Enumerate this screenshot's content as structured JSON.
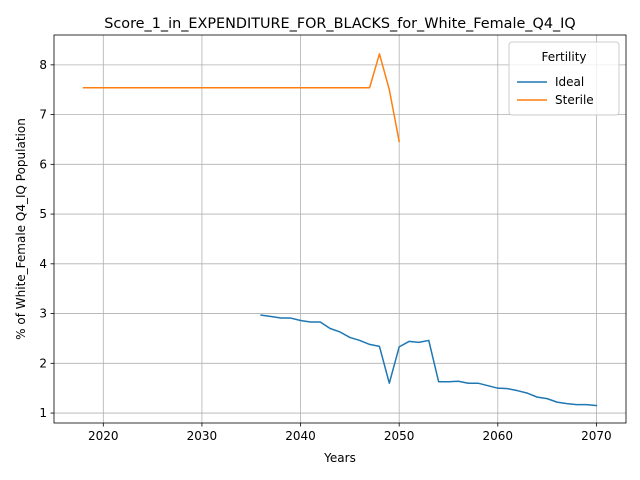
{
  "chart_data": {
    "type": "line",
    "title": "Score_1_in_EXPENDITURE_FOR_BLACKS_for_White_Female_Q4_IQ",
    "xlabel": "Years",
    "ylabel": "% of White_Female Q4_IQ Population",
    "xlim": [
      2015,
      2073
    ],
    "ylim": [
      0.8,
      8.6
    ],
    "xticks": [
      2020,
      2030,
      2040,
      2050,
      2060,
      2070
    ],
    "yticks": [
      1,
      2,
      3,
      4,
      5,
      6,
      7,
      8
    ],
    "grid": true,
    "legend": {
      "title": "Fertility",
      "placement": "top-right"
    },
    "series": [
      {
        "name": "Ideal",
        "color": "#1f77b4",
        "x": [
          2036,
          2037,
          2038,
          2039,
          2040,
          2041,
          2042,
          2043,
          2044,
          2045,
          2046,
          2047,
          2048,
          2049,
          2050,
          2051,
          2052,
          2053,
          2054,
          2055,
          2056,
          2057,
          2058,
          2059,
          2060,
          2061,
          2062,
          2063,
          2064,
          2065,
          2066,
          2067,
          2068,
          2069,
          2070
        ],
        "y": [
          2.97,
          2.94,
          2.91,
          2.91,
          2.86,
          2.83,
          2.83,
          2.7,
          2.63,
          2.52,
          2.46,
          2.38,
          2.34,
          1.6,
          2.33,
          2.44,
          2.42,
          2.46,
          1.63,
          1.63,
          1.64,
          1.6,
          1.6,
          1.55,
          1.5,
          1.49,
          1.45,
          1.4,
          1.32,
          1.29,
          1.22,
          1.19,
          1.17,
          1.17,
          1.15
        ]
      },
      {
        "name": "Sterile",
        "color": "#ff7f0e",
        "x": [
          2018,
          2019,
          2020,
          2021,
          2022,
          2023,
          2024,
          2025,
          2026,
          2027,
          2028,
          2029,
          2030,
          2031,
          2032,
          2033,
          2034,
          2035,
          2036,
          2037,
          2038,
          2039,
          2040,
          2041,
          2042,
          2043,
          2044,
          2045,
          2046,
          2047,
          2048,
          2049,
          2050
        ],
        "y": [
          7.54,
          7.54,
          7.54,
          7.54,
          7.54,
          7.54,
          7.54,
          7.54,
          7.54,
          7.54,
          7.54,
          7.54,
          7.54,
          7.54,
          7.54,
          7.54,
          7.54,
          7.54,
          7.54,
          7.54,
          7.54,
          7.54,
          7.54,
          7.54,
          7.54,
          7.54,
          7.54,
          7.54,
          7.54,
          7.54,
          8.22,
          7.5,
          6.46
        ]
      }
    ]
  }
}
